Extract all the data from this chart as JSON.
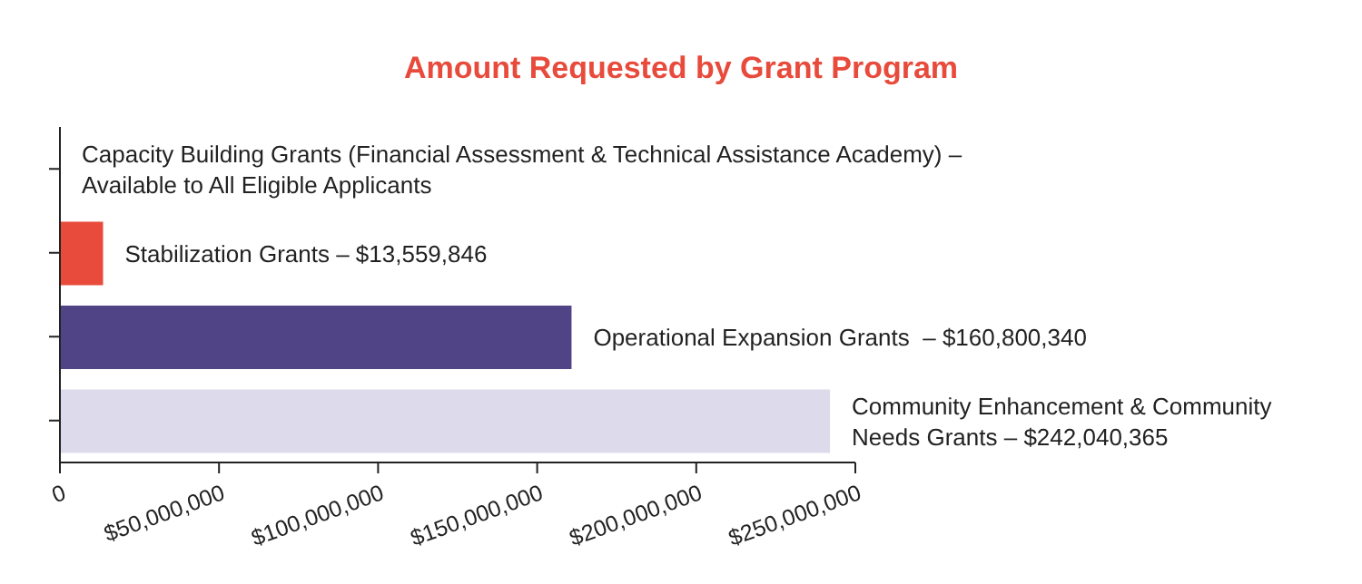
{
  "chart_data": {
    "type": "bar",
    "orientation": "horizontal",
    "title": "Amount Requested by Grant Program",
    "categories": [
      "Capacity Building Grants (Financial Assessment & Technical Assistance Academy) – Available to All Eligible Applicants",
      "Stabilization Grants –",
      "Operational Expansion Grants  –",
      "Community Enhancement & Community Needs Grants –"
    ],
    "tick_labels": "x",
    "values": [
      null,
      13559846,
      160800340,
      242040365
    ],
    "colors": [
      null,
      "#e84a3b",
      "#514486",
      "#dddbeb"
    ],
    "value_labels": [
      null,
      "$13,559,846",
      "$160,800,340",
      "$242,040,365"
    ],
    "xlim": [
      0,
      250000000
    ],
    "xticks": [
      {
        "value": 0,
        "label": "0"
      },
      {
        "value": 50000000,
        "label": "$50,000,000"
      },
      {
        "value": 100000000,
        "label": "$100,000,000"
      },
      {
        "value": 150000000,
        "label": "$150,000,000"
      },
      {
        "value": 200000000,
        "label": "$200,000,000"
      },
      {
        "value": 250000000,
        "label": "$250,000,000"
      }
    ],
    "grid": false,
    "legend": false
  }
}
